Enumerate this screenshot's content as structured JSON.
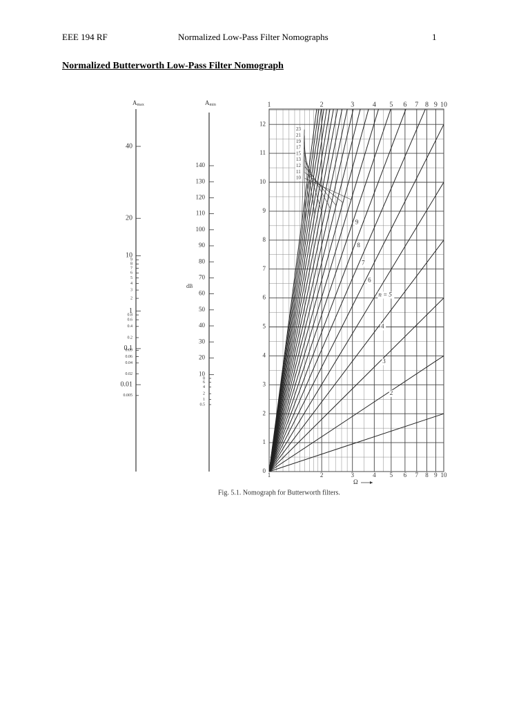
{
  "header": {
    "left": "EEE 194 RF",
    "center": "Normalized Low-Pass Filter Nomographs",
    "right": "1"
  },
  "title": "Normalized Butterworth Low-Pass Filter Nomograph",
  "figure": {
    "amax_scale": {
      "symbol": "A",
      "subscript": "max",
      "ticks": [
        40,
        20,
        10,
        9,
        8,
        7,
        6,
        5,
        4,
        3,
        2,
        1,
        0.8,
        0.6,
        0.4,
        0.2,
        0.1,
        0.09,
        0.06,
        0.04,
        0.02,
        0.01,
        0.005
      ]
    },
    "amin_scale": {
      "symbol": "A",
      "subscript": "min",
      "unit": "dB",
      "ticks": [
        140,
        130,
        120,
        110,
        100,
        90,
        80,
        70,
        60,
        50,
        40,
        30,
        20,
        10,
        8,
        6,
        4,
        2,
        1,
        0.5
      ]
    },
    "chart": {
      "xticks": [
        1,
        2,
        3,
        4,
        5,
        6,
        7,
        8,
        9,
        10
      ],
      "minor_xticks": [
        1.1,
        1.2,
        1.3,
        1.4,
        1.5,
        1.6,
        1.7,
        1.8,
        1.9,
        2.2,
        2.4,
        2.6,
        2.8,
        3.5,
        4.5
      ],
      "yticks": [
        0,
        1,
        2,
        3,
        4,
        5,
        6,
        7,
        8,
        9,
        10,
        11,
        12
      ],
      "minor_yticks": [
        0.5,
        1.5,
        2.5,
        3.5,
        4.5,
        5.5,
        6.5,
        7.5,
        8.5,
        9.5,
        10.5,
        11.5,
        12.5
      ],
      "orders": [
        1,
        2,
        3,
        4,
        5,
        6,
        7,
        8,
        9,
        10,
        11,
        12,
        13,
        14,
        15,
        16,
        17,
        18,
        19,
        20,
        21,
        22,
        23
      ],
      "order_labels": [
        "2",
        "3",
        "4",
        "n = 5",
        "6",
        "7",
        "8",
        "9"
      ],
      "order_label_values": [
        2,
        3,
        4,
        5,
        6,
        7,
        8,
        9
      ],
      "high_order_labels": [
        "10",
        "11",
        "12",
        "13",
        "15",
        "17",
        "19",
        "21",
        "23"
      ],
      "high_order_values": [
        10,
        11,
        12,
        13,
        15,
        17,
        19,
        21,
        23
      ],
      "x_label": "Ω"
    },
    "caption": "Fig. 5.1.  Nomograph for Butterworth filters."
  }
}
